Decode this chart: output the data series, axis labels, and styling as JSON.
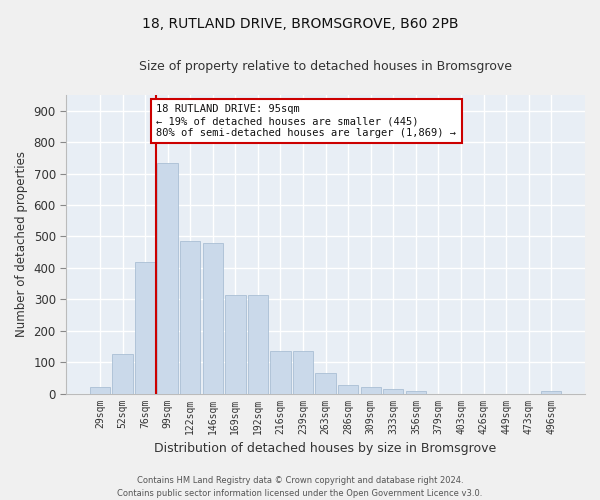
{
  "title": "18, RUTLAND DRIVE, BROMSGROVE, B60 2PB",
  "subtitle": "Size of property relative to detached houses in Bromsgrove",
  "xlabel": "Distribution of detached houses by size in Bromsgrove",
  "ylabel": "Number of detached properties",
  "bar_color": "#cad9ea",
  "bar_edge_color": "#aabfd4",
  "background_color": "#e8eef5",
  "grid_color": "#ffffff",
  "fig_background": "#f0f0f0",
  "categories": [
    "29sqm",
    "52sqm",
    "76sqm",
    "99sqm",
    "122sqm",
    "146sqm",
    "169sqm",
    "192sqm",
    "216sqm",
    "239sqm",
    "263sqm",
    "286sqm",
    "309sqm",
    "333sqm",
    "356sqm",
    "379sqm",
    "403sqm",
    "426sqm",
    "449sqm",
    "473sqm",
    "496sqm"
  ],
  "values": [
    20,
    125,
    420,
    735,
    485,
    480,
    315,
    315,
    135,
    135,
    65,
    28,
    22,
    15,
    8,
    0,
    0,
    0,
    0,
    0,
    8
  ],
  "ylim": [
    0,
    950
  ],
  "yticks": [
    0,
    100,
    200,
    300,
    400,
    500,
    600,
    700,
    800,
    900
  ],
  "vline_color": "#cc0000",
  "annotation_text": "18 RUTLAND DRIVE: 95sqm\n← 19% of detached houses are smaller (445)\n80% of semi-detached houses are larger (1,869) →",
  "annotation_box_color": "#ffffff",
  "annotation_box_edge": "#cc0000",
  "footer_line1": "Contains HM Land Registry data © Crown copyright and database right 2024.",
  "footer_line2": "Contains public sector information licensed under the Open Government Licence v3.0."
}
